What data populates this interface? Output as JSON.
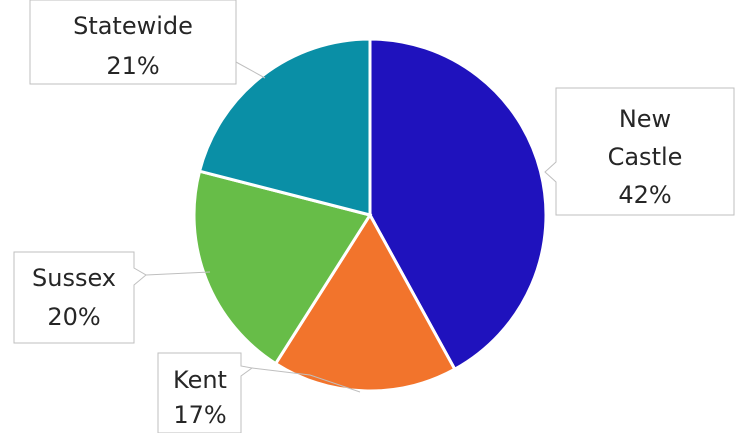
{
  "chart_data": {
    "type": "pie",
    "title": "",
    "slices": [
      {
        "label": "New Castle",
        "value": 42,
        "display": "42%",
        "color": "#1f12bd"
      },
      {
        "label": "Kent",
        "value": 17,
        "display": "17%",
        "color": "#f2742c"
      },
      {
        "label": "Sussex",
        "value": 20,
        "display": "20%",
        "color": "#67bd48"
      },
      {
        "label": "Statewide",
        "value": 21,
        "display": "21%",
        "color": "#0a8fa6"
      }
    ],
    "start_angle": "12 o'clock",
    "direction": "clockwise",
    "legend": "none",
    "data_labels": "callouts"
  }
}
